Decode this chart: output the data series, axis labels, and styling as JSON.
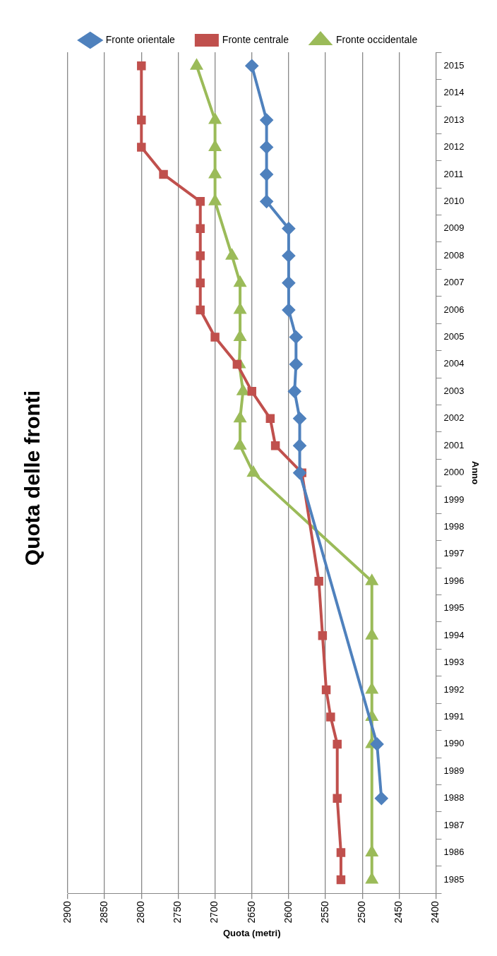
{
  "chart_data": {
    "type": "line",
    "title": "Quota delle fronti",
    "xlabel": "Quota (metri)",
    "ylabel": "Anno",
    "orientation": "horizontal",
    "categories": [
      "2015",
      "2014",
      "2013",
      "2012",
      "2011",
      "2010",
      "2009",
      "2008",
      "2007",
      "2006",
      "2005",
      "2004",
      "2003",
      "2002",
      "2001",
      "2000",
      "1999",
      "1998",
      "1997",
      "1996",
      "1995",
      "1994",
      "1993",
      "1992",
      "1991",
      "1990",
      "1989",
      "1988",
      "1987",
      "1986",
      "1985"
    ],
    "series": [
      {
        "name": "Fronte orientale",
        "color": "#4f81bd",
        "marker": "diamond",
        "values": [
          2650,
          null,
          2630,
          2630,
          2630,
          2630,
          2600,
          2600,
          2600,
          2600,
          2590,
          2590,
          2592,
          2585,
          2585,
          2585,
          null,
          null,
          null,
          null,
          null,
          null,
          null,
          null,
          null,
          2480,
          null,
          2474,
          null,
          null,
          null
        ]
      },
      {
        "name": "Fronte centrale",
        "color": "#c0504d",
        "marker": "square",
        "values": [
          2800,
          null,
          2800,
          2800,
          2770,
          2720,
          2720,
          2720,
          2720,
          2720,
          2700,
          2670,
          2650,
          2625,
          2618,
          2582,
          null,
          null,
          null,
          2559,
          null,
          2554,
          null,
          2549,
          2543,
          2534,
          null,
          2534,
          null,
          2529,
          2529
        ]
      },
      {
        "name": "Fronte occidentale",
        "color": "#9bbb59",
        "marker": "triangle",
        "values": [
          2725,
          null,
          2700,
          2700,
          2700,
          2700,
          null,
          2677,
          2666,
          2666,
          2666,
          2667,
          2662,
          2666,
          2666,
          2648,
          null,
          null,
          null,
          2487,
          null,
          2487,
          null,
          2487,
          2487,
          2487,
          null,
          null,
          null,
          2487,
          2487
        ]
      }
    ],
    "xlim": [
      2900,
      2400
    ],
    "xticks": [
      2900,
      2850,
      2800,
      2750,
      2700,
      2650,
      2600,
      2550,
      2500,
      2450,
      2400
    ],
    "grid": "x",
    "legend": "top",
    "line_style": "solid"
  }
}
